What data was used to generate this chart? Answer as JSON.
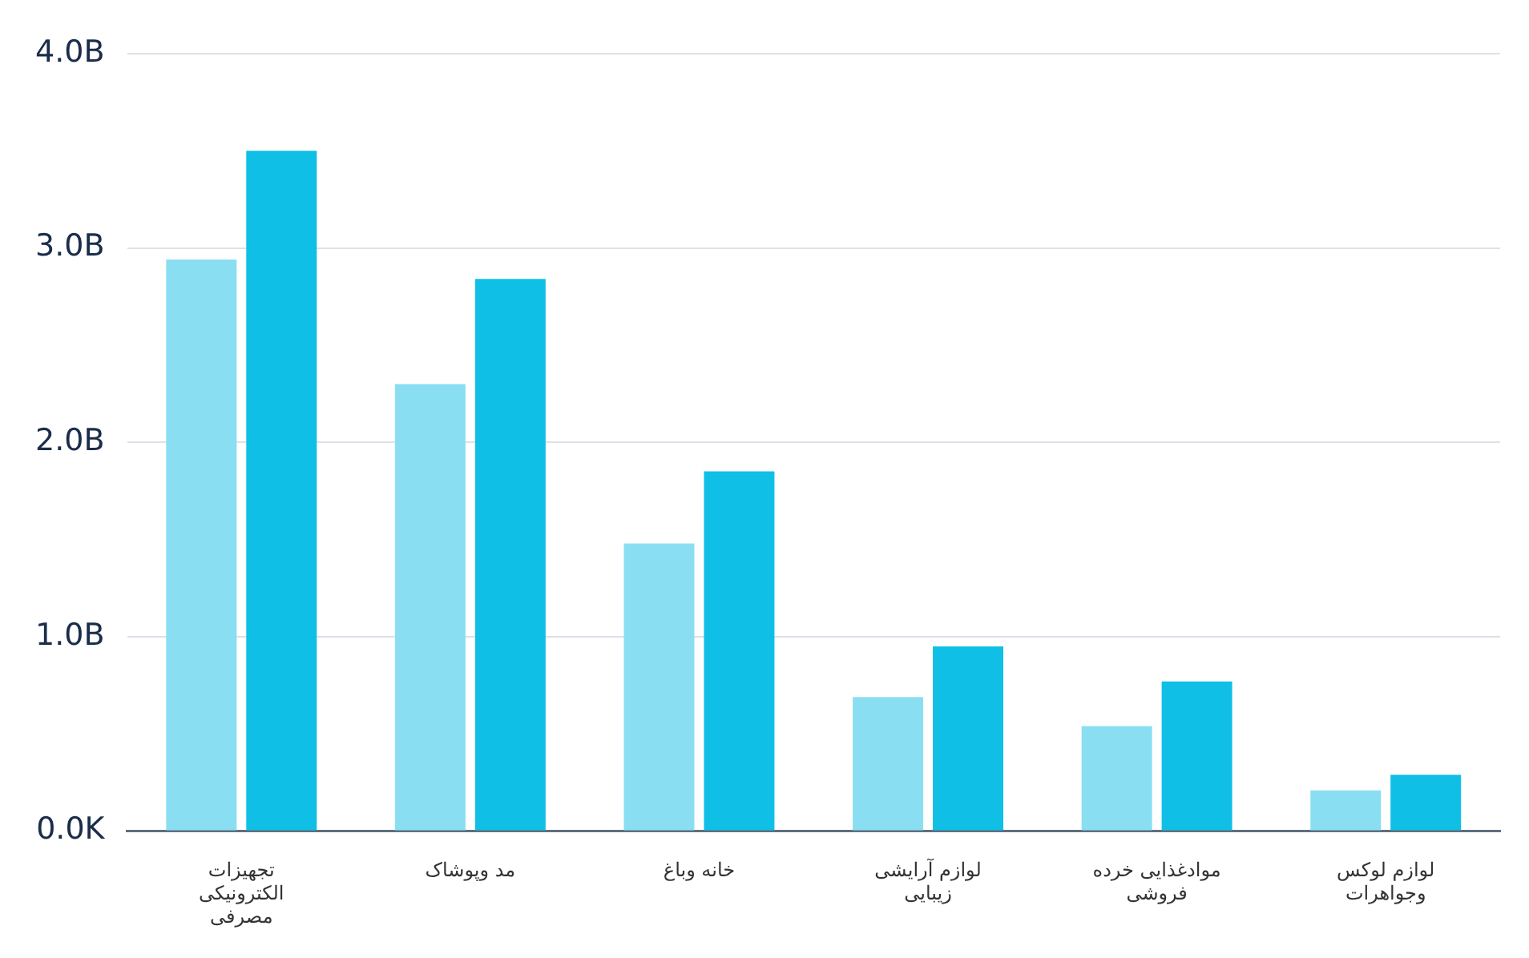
{
  "chart_data": {
    "type": "bar",
    "categories": [
      "تجهیزات الکترونیکی مصرفی",
      "مد وپوشاک",
      "خانه وباغ",
      "لوازم آرایشی زیبایی",
      "موادغذایی خرده فروشی",
      "لوازم لوکس وجواهرات"
    ],
    "series": [
      {
        "color": "#89dff1",
        "values": [
          2.94,
          2.3,
          1.48,
          0.69,
          0.54,
          0.21
        ]
      },
      {
        "color": "#0fbfe6",
        "values": [
          3.5,
          2.84,
          1.85,
          0.95,
          0.77,
          0.29
        ]
      }
    ],
    "ylim": [
      0,
      4
    ],
    "yticks": [
      {
        "value": 0,
        "label": "0.0K"
      },
      {
        "value": 1,
        "label": "1.0B"
      },
      {
        "value": 2,
        "label": "2.0B"
      },
      {
        "value": 3,
        "label": "3.0B"
      },
      {
        "value": 4,
        "label": "4.0B"
      }
    ],
    "grid": "y",
    "legend": false
  }
}
